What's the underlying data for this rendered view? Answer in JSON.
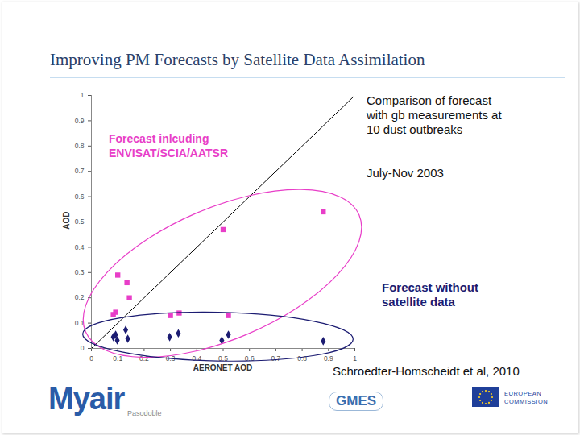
{
  "chart_data": {
    "type": "scatter",
    "title": "Improving PM Forecasts by Satellite Data Assimilation",
    "x_label": "AERONET AOD",
    "y_label": "AOD",
    "xlim": [
      0,
      1
    ],
    "ylim": [
      0,
      1
    ],
    "xticks": [
      0,
      0.1,
      0.2,
      0.3,
      0.4,
      0.5,
      0.6,
      0.7,
      0.8,
      0.9,
      1
    ],
    "yticks": [
      0,
      0.1,
      0.2,
      0.3,
      0.4,
      0.5,
      0.6,
      0.7,
      0.8,
      0.9,
      1
    ],
    "grid": false,
    "series": [
      {
        "name": "Forecast inlcuding ENVISAT/SCIA/AATSR",
        "color": "#e83ec8",
        "marker": "square",
        "x": [
          0.1,
          0.135,
          0.144,
          0.092,
          0.083,
          0.3,
          0.333,
          0.5,
          0.52,
          0.88
        ],
        "values": [
          0.29,
          0.26,
          0.2,
          0.143,
          0.134,
          0.13,
          0.14,
          0.47,
          0.13,
          0.54
        ]
      },
      {
        "name": "Forecast without satellite data",
        "color": "#1c1c72",
        "marker": "diamond",
        "x": [
          0.083,
          0.092,
          0.098,
          0.13,
          0.138,
          0.297,
          0.33,
          0.495,
          0.52,
          0.88
        ],
        "values": [
          0.045,
          0.054,
          0.032,
          0.073,
          0.038,
          0.045,
          0.06,
          0.032,
          0.054,
          0.029
        ]
      }
    ],
    "annotations": [
      "Comparison of forecast with gb measurements at 10 dust outbreaks",
      "July-Nov 2003",
      "Schroedter-Homscheidt et al, 2010",
      "Myair",
      "Pasodoble",
      "GMES",
      "EUROPEAN COMMISSION"
    ]
  }
}
